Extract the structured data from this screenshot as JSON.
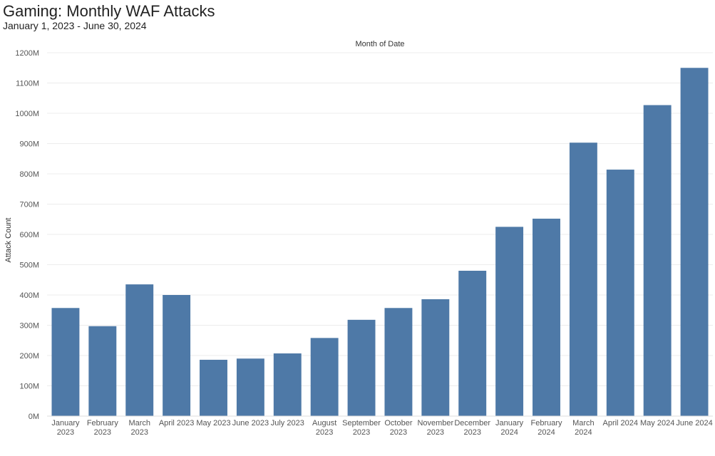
{
  "header": {
    "title": "Gaming: Monthly WAF Attacks",
    "subtitle": "January 1, 2023 - June 30, 2024"
  },
  "colors": {
    "bar": "#4e79a7",
    "gridline": "#ececec",
    "axis_text": "#555555",
    "title_text": "#222222"
  },
  "chart_data": {
    "type": "bar",
    "title": "Gaming: Monthly WAF Attacks",
    "subtitle": "January 1, 2023 - June 30, 2024",
    "top_axis_label": "Month of Date",
    "xlabel": "",
    "ylabel": "Attack Count",
    "ylim": [
      0,
      1200000000
    ],
    "y_ticks": [
      0,
      100000000,
      200000000,
      300000000,
      400000000,
      500000000,
      600000000,
      700000000,
      800000000,
      900000000,
      1000000000,
      1100000000,
      1200000000
    ],
    "y_tick_labels": [
      "0M",
      "100M",
      "200M",
      "300M",
      "400M",
      "500M",
      "600M",
      "700M",
      "800M",
      "900M",
      "1000M",
      "1100M",
      "1200M"
    ],
    "grid": true,
    "legend": "none",
    "categories": [
      [
        "January",
        "2023"
      ],
      [
        "February",
        "2023"
      ],
      [
        "March",
        "2023"
      ],
      [
        "April 2023"
      ],
      [
        "May 2023"
      ],
      [
        "June 2023"
      ],
      [
        "July 2023"
      ],
      [
        "August",
        "2023"
      ],
      [
        "September",
        "2023"
      ],
      [
        "October",
        "2023"
      ],
      [
        "November",
        "2023"
      ],
      [
        "December",
        "2023"
      ],
      [
        "January",
        "2024"
      ],
      [
        "February",
        "2024"
      ],
      [
        "March",
        "2024"
      ],
      [
        "April 2024"
      ],
      [
        "May 2024"
      ],
      [
        "June 2024"
      ]
    ],
    "values": [
      357000000,
      297000000,
      435000000,
      400000000,
      186000000,
      190000000,
      207000000,
      258000000,
      318000000,
      357000000,
      386000000,
      480000000,
      625000000,
      652000000,
      903000000,
      814000000,
      1027000000,
      1150000000
    ]
  }
}
